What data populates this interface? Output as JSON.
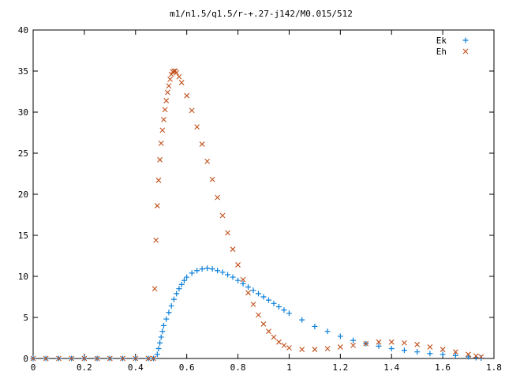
{
  "chart_data": {
    "type": "scatter",
    "title": "m1/n1.5/q1.5/r-+.27-j142/M0.015/512",
    "xlabel": "",
    "ylabel": "",
    "xlim": [
      0,
      1.8
    ],
    "ylim": [
      0,
      40
    ],
    "x_ticks": [
      "0",
      "0.2",
      "0.4",
      "0.6",
      "0.8",
      "1",
      "1.2",
      "1.4",
      "1.6",
      "1.8"
    ],
    "y_ticks": [
      "0",
      "5",
      "10",
      "15",
      "20",
      "25",
      "30",
      "35",
      "40"
    ],
    "grid": false,
    "legend_position": "top-right",
    "series": [
      {
        "name": "Ek",
        "marker": "+",
        "color": "#0a7fd9",
        "points": [
          [
            0.0,
            0.0
          ],
          [
            0.05,
            0.0
          ],
          [
            0.1,
            0.0
          ],
          [
            0.15,
            0.0
          ],
          [
            0.2,
            0.0
          ],
          [
            0.25,
            0.0
          ],
          [
            0.3,
            0.0
          ],
          [
            0.35,
            0.0
          ],
          [
            0.4,
            0.0
          ],
          [
            0.45,
            0.0
          ],
          [
            0.47,
            0.0
          ],
          [
            0.485,
            0.5
          ],
          [
            0.49,
            1.2
          ],
          [
            0.495,
            1.9
          ],
          [
            0.5,
            2.6
          ],
          [
            0.505,
            3.3
          ],
          [
            0.51,
            4.0
          ],
          [
            0.52,
            4.8
          ],
          [
            0.53,
            5.6
          ],
          [
            0.54,
            6.4
          ],
          [
            0.55,
            7.2
          ],
          [
            0.56,
            7.9
          ],
          [
            0.57,
            8.5
          ],
          [
            0.58,
            9.0
          ],
          [
            0.59,
            9.5
          ],
          [
            0.6,
            9.9
          ],
          [
            0.62,
            10.4
          ],
          [
            0.64,
            10.7
          ],
          [
            0.66,
            10.9
          ],
          [
            0.68,
            11.0
          ],
          [
            0.7,
            10.9
          ],
          [
            0.72,
            10.7
          ],
          [
            0.74,
            10.5
          ],
          [
            0.76,
            10.2
          ],
          [
            0.78,
            9.9
          ],
          [
            0.8,
            9.5
          ],
          [
            0.82,
            9.1
          ],
          [
            0.84,
            8.7
          ],
          [
            0.86,
            8.3
          ],
          [
            0.88,
            7.9
          ],
          [
            0.9,
            7.5
          ],
          [
            0.92,
            7.1
          ],
          [
            0.94,
            6.7
          ],
          [
            0.96,
            6.3
          ],
          [
            0.98,
            5.9
          ],
          [
            1.0,
            5.5
          ],
          [
            1.05,
            4.7
          ],
          [
            1.1,
            3.9
          ],
          [
            1.15,
            3.3
          ],
          [
            1.2,
            2.7
          ],
          [
            1.25,
            2.2
          ],
          [
            1.3,
            1.8
          ],
          [
            1.35,
            1.5
          ],
          [
            1.4,
            1.2
          ],
          [
            1.45,
            1.0
          ],
          [
            1.5,
            0.8
          ],
          [
            1.55,
            0.6
          ],
          [
            1.6,
            0.5
          ],
          [
            1.65,
            0.35
          ],
          [
            1.7,
            0.2
          ],
          [
            1.73,
            0.1
          ],
          [
            1.75,
            0.05
          ]
        ]
      },
      {
        "name": "Eh",
        "marker": "x",
        "color": "#c0501a",
        "points": [
          [
            0.0,
            0.0
          ],
          [
            0.05,
            0.0
          ],
          [
            0.1,
            0.0
          ],
          [
            0.15,
            0.0
          ],
          [
            0.2,
            0.0
          ],
          [
            0.25,
            0.0
          ],
          [
            0.3,
            0.0
          ],
          [
            0.35,
            0.0
          ],
          [
            0.4,
            0.0
          ],
          [
            0.45,
            0.0
          ],
          [
            0.47,
            0.0
          ],
          [
            0.475,
            8.5
          ],
          [
            0.48,
            14.4
          ],
          [
            0.485,
            18.6
          ],
          [
            0.49,
            21.7
          ],
          [
            0.495,
            24.2
          ],
          [
            0.5,
            26.2
          ],
          [
            0.505,
            27.8
          ],
          [
            0.51,
            29.1
          ],
          [
            0.515,
            30.3
          ],
          [
            0.52,
            31.4
          ],
          [
            0.525,
            32.4
          ],
          [
            0.53,
            33.2
          ],
          [
            0.535,
            34.0
          ],
          [
            0.54,
            34.6
          ],
          [
            0.545,
            34.9
          ],
          [
            0.55,
            35.0
          ],
          [
            0.555,
            35.0
          ],
          [
            0.56,
            34.8
          ],
          [
            0.57,
            34.3
          ],
          [
            0.58,
            33.6
          ],
          [
            0.6,
            32.0
          ],
          [
            0.62,
            30.2
          ],
          [
            0.64,
            28.2
          ],
          [
            0.66,
            26.1
          ],
          [
            0.68,
            24.0
          ],
          [
            0.7,
            21.8
          ],
          [
            0.72,
            19.6
          ],
          [
            0.74,
            17.4
          ],
          [
            0.76,
            15.3
          ],
          [
            0.78,
            13.3
          ],
          [
            0.8,
            11.4
          ],
          [
            0.82,
            9.6
          ],
          [
            0.84,
            8.0
          ],
          [
            0.86,
            6.6
          ],
          [
            0.88,
            5.3
          ],
          [
            0.9,
            4.2
          ],
          [
            0.92,
            3.3
          ],
          [
            0.94,
            2.6
          ],
          [
            0.96,
            2.0
          ],
          [
            0.98,
            1.6
          ],
          [
            1.0,
            1.3
          ],
          [
            1.05,
            1.1
          ],
          [
            1.1,
            1.1
          ],
          [
            1.15,
            1.2
          ],
          [
            1.2,
            1.4
          ],
          [
            1.25,
            1.6
          ],
          [
            1.3,
            1.8
          ],
          [
            1.35,
            2.0
          ],
          [
            1.4,
            2.0
          ],
          [
            1.45,
            1.9
          ],
          [
            1.5,
            1.7
          ],
          [
            1.55,
            1.4
          ],
          [
            1.6,
            1.1
          ],
          [
            1.65,
            0.8
          ],
          [
            1.7,
            0.5
          ],
          [
            1.73,
            0.3
          ],
          [
            1.75,
            0.2
          ]
        ]
      }
    ]
  }
}
